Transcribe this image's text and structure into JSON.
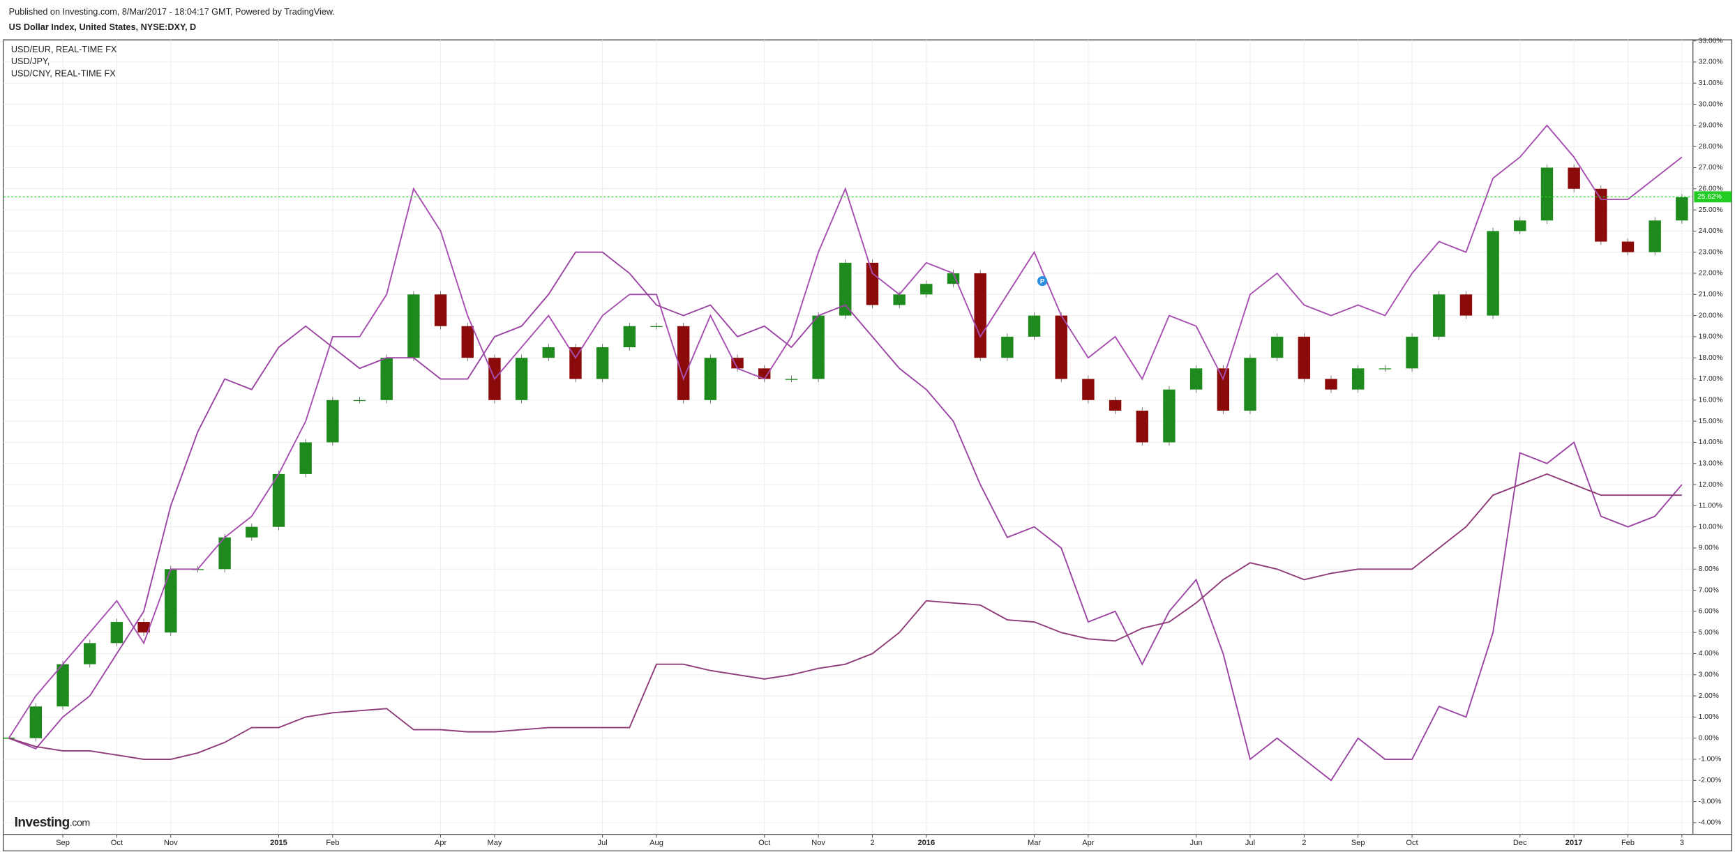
{
  "header": {
    "published": "Published on Investing.com, 8/Mar/2017 - 18:04:17 GMT, Powered by TradingView.",
    "instrument": "US Dollar Index, United States, NYSE:DXY, D"
  },
  "chart_data": {
    "type": "line",
    "categories": [
      null,
      null,
      "Sep",
      null,
      "Oct",
      null,
      "Nov",
      null,
      null,
      null,
      "2015",
      null,
      "Feb",
      null,
      null,
      null,
      "Apr",
      null,
      "May",
      null,
      null,
      null,
      "Jul",
      null,
      "Aug",
      null,
      null,
      null,
      "Oct",
      null,
      "Nov",
      null,
      "2",
      null,
      "2016",
      null,
      null,
      null,
      "Mar",
      null,
      "Apr",
      null,
      null,
      null,
      "Jun",
      null,
      "Jul",
      null,
      "2",
      null,
      "Sep",
      null,
      "Oct",
      null,
      null,
      null,
      "Dec",
      null,
      "2017",
      null,
      "Feb",
      null,
      "3"
    ],
    "series": [
      {
        "name": "USD/EUR, REAL-TIME FX",
        "color": "#a64fb0",
        "values": [
          0,
          2,
          3.5,
          5,
          6.5,
          4.5,
          8,
          8,
          9.5,
          10.5,
          12.5,
          15,
          19,
          19,
          21,
          26,
          24,
          20,
          17,
          18.5,
          20,
          18,
          20,
          21,
          21,
          17,
          20,
          17.5,
          17,
          19,
          23,
          26,
          22,
          21,
          22.5,
          22,
          19,
          21,
          23,
          20,
          18,
          19,
          17,
          20,
          19.5,
          17,
          21,
          22,
          20.5,
          20,
          20.5,
          20,
          22,
          23.5,
          23,
          26.5,
          27.5,
          29,
          27.5,
          25.5,
          25.5,
          26.5,
          27.5
        ]
      },
      {
        "name": "USD/JPY,",
        "color": "#9b45a3",
        "values": [
          0,
          -0.5,
          1,
          2,
          4,
          6,
          11,
          14.5,
          17,
          16.5,
          18.5,
          19.5,
          18.5,
          17.5,
          18,
          18,
          17,
          17,
          19,
          19.5,
          21,
          23,
          23,
          22,
          20.5,
          20,
          20.5,
          19,
          19.5,
          18.5,
          20,
          20.5,
          19,
          17.5,
          16.5,
          15,
          12,
          9.5,
          10,
          9,
          5.5,
          6,
          3.5,
          6,
          7.5,
          4,
          -1,
          0,
          -1,
          -2,
          0,
          -1,
          -1,
          1.5,
          1,
          5,
          13.5,
          13,
          14,
          10.5,
          10,
          10.5,
          12
        ]
      },
      {
        "name": "USD/CNY, REAL-TIME FX",
        "color": "#8e3b78",
        "values": [
          0,
          -0.4,
          -0.6,
          -0.6,
          -0.8,
          -1,
          -1,
          -0.7,
          -0.2,
          0.5,
          0.5,
          1,
          1.2,
          1.3,
          1.4,
          0.4,
          0.4,
          0.3,
          0.3,
          0.4,
          0.5,
          0.5,
          0.5,
          0.5,
          3.5,
          3.5,
          3.2,
          3,
          2.8,
          3,
          3.3,
          3.5,
          4,
          5,
          6.5,
          6.4,
          6.3,
          5.6,
          5.5,
          5,
          4.7,
          4.6,
          5.2,
          5.5,
          6.4,
          7.5,
          8.3,
          8,
          7.5,
          7.8,
          8,
          8,
          8,
          9,
          10,
          11.5,
          12,
          12.5,
          12,
          11.5,
          11.5,
          11.5,
          11.5
        ]
      }
    ],
    "candles": {
      "up_color": "#1e8a1e",
      "down_color": "#8b0a0a",
      "close": [
        0,
        1.5,
        3.5,
        4.5,
        5.5,
        5,
        8,
        8,
        9.5,
        10,
        12.5,
        14,
        16,
        16,
        18,
        21,
        19.5,
        18,
        16,
        18,
        18.5,
        17,
        18.5,
        19.5,
        19.5,
        16,
        18,
        17.5,
        17,
        17,
        20,
        22.5,
        20.5,
        21,
        21.5,
        22,
        18,
        19,
        20,
        17,
        16,
        15.5,
        14,
        16.5,
        17.5,
        15.5,
        18,
        19,
        17,
        16.5,
        17.5,
        17.5,
        19,
        21,
        20,
        24,
        24.5,
        27,
        26,
        23.5,
        23,
        24.5,
        25.6
      ]
    },
    "price_line": {
      "value": 25.62,
      "label": "25.62%",
      "color": "#22cc22"
    },
    "annotation": "P",
    "ylim": [
      -4.55,
      33.05
    ],
    "yticks": [
      {
        "value": -4,
        "label": "-4.00%"
      },
      {
        "value": -3,
        "label": "-3.00%"
      },
      {
        "value": -2,
        "label": "-2.00%"
      },
      {
        "value": -1,
        "label": "-1.00%"
      },
      {
        "value": 0,
        "label": "0.00%"
      },
      {
        "value": 1,
        "label": "1.00%"
      },
      {
        "value": 2,
        "label": "2.00%"
      },
      {
        "value": 3,
        "label": "3.00%"
      },
      {
        "value": 4,
        "label": "4.00%"
      },
      {
        "value": 5,
        "label": "5.00%"
      },
      {
        "value": 6,
        "label": "6.00%"
      },
      {
        "value": 7,
        "label": "7.00%"
      },
      {
        "value": 8,
        "label": "8.00%"
      },
      {
        "value": 9,
        "label": "9.00%"
      },
      {
        "value": 10,
        "label": "10.00%"
      },
      {
        "value": 11,
        "label": "11.00%"
      },
      {
        "value": 12,
        "label": "12.00%"
      },
      {
        "value": 13,
        "label": "13.00%"
      },
      {
        "value": 14,
        "label": "14.00%"
      },
      {
        "value": 15,
        "label": "15.00%"
      },
      {
        "value": 16,
        "label": "16.00%"
      },
      {
        "value": 17,
        "label": "17.00%"
      },
      {
        "value": 18,
        "label": "18.00%"
      },
      {
        "value": 19,
        "label": "19.00%"
      },
      {
        "value": 20,
        "label": "20.00%"
      },
      {
        "value": 21,
        "label": "21.00%"
      },
      {
        "value": 22,
        "label": "22.00%"
      },
      {
        "value": 23,
        "label": "23.00%"
      },
      {
        "value": 24,
        "label": "24.00%"
      },
      {
        "value": 25,
        "label": "25.00%"
      },
      {
        "value": 26,
        "label": "26.00%"
      },
      {
        "value": 27,
        "label": "27.00%"
      },
      {
        "value": 28,
        "label": "28.00%"
      },
      {
        "value": 29,
        "label": "29.00%"
      },
      {
        "value": 30,
        "label": "30.00%"
      },
      {
        "value": 31,
        "label": "31.00%"
      },
      {
        "value": 32,
        "label": "32.00%"
      },
      {
        "value": 33,
        "label": "33.00%"
      }
    ],
    "grid": true,
    "logo": "Investing",
    "logo_suffix": ".com"
  }
}
